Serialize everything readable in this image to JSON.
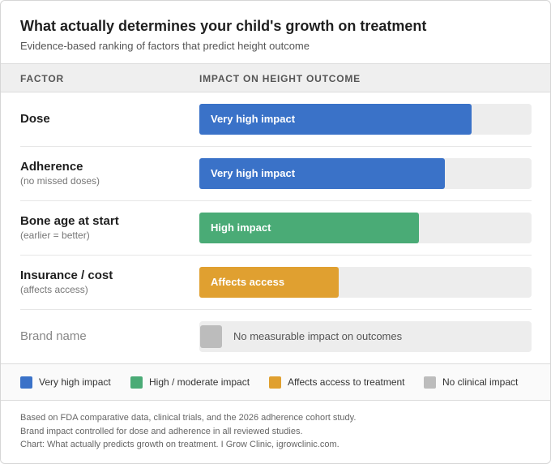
{
  "header": {
    "title": "What actually determines your child's growth on treatment",
    "subtitle": "Evidence-based ranking of factors that predict height outcome"
  },
  "columns": {
    "factor": "FACTOR",
    "impact": "IMPACT ON HEIGHT OUTCOME"
  },
  "chart_data": {
    "type": "bar",
    "orientation": "horizontal",
    "categories": [
      "Dose",
      "Adherence",
      "Bone age at start",
      "Insurance / cost",
      "Brand name"
    ],
    "values": [
      0.82,
      0.74,
      0.66,
      0.42,
      0
    ],
    "xlim": [
      0,
      1
    ],
    "grid": false,
    "legend_position": "bottom",
    "rows": [
      {
        "name": "Dose",
        "note": "",
        "impact_label": "Very high impact",
        "value": 0.82,
        "color": "#3a72c8",
        "muted": false
      },
      {
        "name": "Adherence",
        "note": "(no missed doses)",
        "impact_label": "Very high impact",
        "value": 0.74,
        "color": "#3a72c8",
        "muted": false
      },
      {
        "name": "Bone age at start",
        "note": "(earlier = better)",
        "impact_label": "High impact",
        "value": 0.66,
        "color": "#4aab76",
        "muted": false
      },
      {
        "name": "Insurance / cost",
        "note": "(affects access)",
        "impact_label": "Affects access",
        "value": 0.42,
        "color": "#e0a030",
        "muted": false
      },
      {
        "name": "Brand name",
        "note": "",
        "impact_label": "No measurable impact on outcomes",
        "value": 0,
        "color": "#bcbcbc",
        "muted": true
      }
    ],
    "legend": [
      {
        "label": "Very high impact",
        "color": "#3a72c8"
      },
      {
        "label": "High / moderate impact",
        "color": "#4aab76"
      },
      {
        "label": "Affects access to treatment",
        "color": "#e0a030"
      },
      {
        "label": "No clinical impact",
        "color": "#bcbcbc"
      }
    ]
  },
  "footnotes": [
    "Based on FDA comparative data, clinical trials, and the 2026 adherence cohort study.",
    "Brand impact controlled for dose and adherence in all reviewed studies.",
    "Chart: What actually predicts growth on treatment. I Grow Clinic, igrowclinic.com."
  ]
}
